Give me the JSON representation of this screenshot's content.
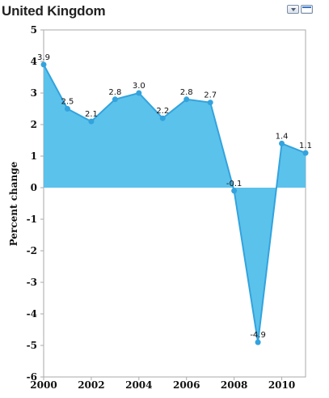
{
  "title": "United Kingdom",
  "controls": [
    {
      "name": "dropdown-icon"
    },
    {
      "name": "window-icon"
    }
  ],
  "chart_data": {
    "type": "area",
    "ylabel": "Percent change",
    "xlabel": "",
    "x": [
      2000,
      2001,
      2002,
      2003,
      2004,
      2005,
      2006,
      2007,
      2008,
      2009,
      2010,
      2011
    ],
    "series": [
      {
        "values": [
          3.9,
          2.5,
          2.1,
          2.8,
          3.0,
          2.2,
          2.8,
          2.7,
          -0.1,
          -4.9,
          1.4,
          1.1
        ],
        "data_labels": [
          "3.9",
          "2.5",
          "2.1",
          "2.8",
          "3.0",
          "2.2",
          "2.8",
          "2.7",
          "-0.1",
          "-4.9",
          "1.4",
          "1.1"
        ]
      }
    ],
    "xlim": [
      2000,
      2011
    ],
    "ylim": [
      -6,
      5
    ],
    "x_ticks": [
      2000,
      2002,
      2004,
      2006,
      2008,
      2010
    ],
    "y_ticks": [
      5,
      4,
      3,
      2,
      1,
      0,
      -1,
      -2,
      -3,
      -4,
      -5,
      -6
    ],
    "grid": false,
    "colors": {
      "fill": "#5bc2ec",
      "line": "#33a3dd",
      "marker": "#33a3dd",
      "axis": "#aaaaaa"
    }
  }
}
